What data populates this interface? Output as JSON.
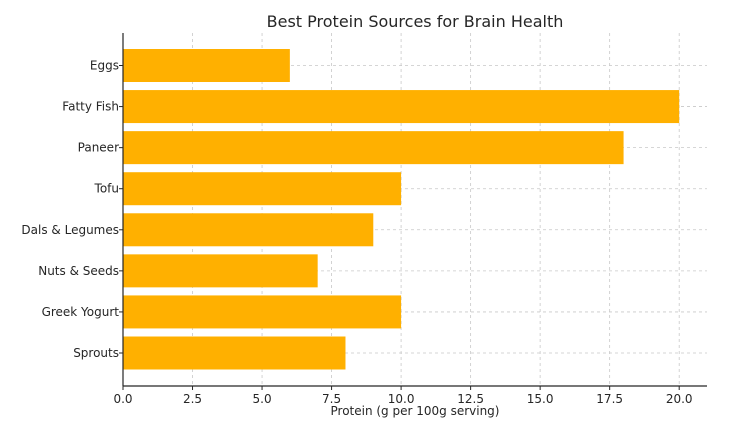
{
  "chart_data": {
    "type": "bar",
    "orientation": "horizontal",
    "title": "Best Protein Sources for Brain Health",
    "xlabel": "Protein (g per 100g serving)",
    "ylabel": "",
    "categories": [
      "Eggs",
      "Fatty Fish",
      "Paneer",
      "Tofu",
      "Dals & Legumes",
      "Nuts & Seeds",
      "Greek Yogurt",
      "Sprouts"
    ],
    "values": [
      6,
      20,
      18,
      10,
      9,
      7,
      10,
      8
    ],
    "xlim": [
      0,
      21
    ],
    "xticks": [
      "0.0",
      "2.5",
      "5.0",
      "7.5",
      "10.0",
      "12.5",
      "15.0",
      "17.5",
      "20.0"
    ],
    "xtick_values": [
      0,
      2.5,
      5,
      7.5,
      10,
      12.5,
      15,
      17.5,
      20
    ],
    "grid": true,
    "bar_color": "#FFB000"
  }
}
